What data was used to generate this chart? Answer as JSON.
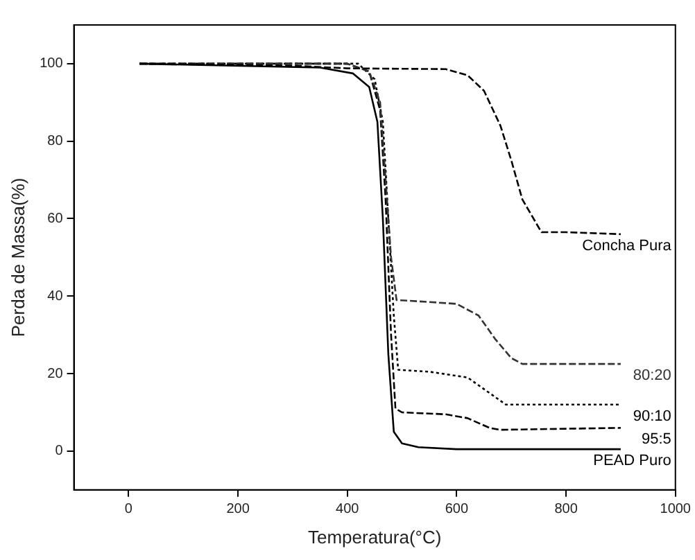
{
  "chart_data": {
    "type": "line",
    "xlabel": "Temperatura(°C)",
    "ylabel": "Perda de Massa(%)",
    "xlim": [
      -100,
      1000
    ],
    "xticks": [
      0,
      200,
      400,
      600,
      800,
      1000
    ],
    "ylim": [
      -10,
      110
    ],
    "yticks": [
      0,
      20,
      40,
      60,
      80,
      100
    ],
    "grid": false,
    "legend": false,
    "marker": "none",
    "series": [
      {
        "name": "Concha Pura",
        "color": "#000000",
        "line_style": "dashed",
        "x": [
          20,
          300,
          400,
          580,
          620,
          650,
          680,
          700,
          720,
          755,
          800,
          900
        ],
        "values": [
          100,
          99.5,
          98.8,
          98.6,
          97,
          93,
          84,
          75,
          65,
          56.5,
          56.5,
          56
        ]
      },
      {
        "name": "80:20",
        "color": "#333333",
        "line_style": "dashed",
        "x": [
          20,
          400,
          440,
          460,
          470,
          480,
          490,
          550,
          600,
          640,
          670,
          700,
          720,
          900
        ],
        "values": [
          100,
          100,
          98,
          90,
          70,
          50,
          39,
          38.5,
          38,
          35,
          29,
          24,
          22.5,
          22.5
        ]
      },
      {
        "name": "90:10",
        "color": "#000000",
        "line_style": "dotted",
        "x": [
          20,
          420,
          450,
          465,
          475,
          485,
          493,
          550,
          620,
          660,
          690,
          900
        ],
        "values": [
          100,
          100,
          96,
          85,
          60,
          35,
          21,
          20.5,
          19,
          15,
          12,
          12
        ]
      },
      {
        "name": "95:5",
        "color": "#000000",
        "line_style": "dashed",
        "x": [
          20,
          400,
          440,
          460,
          470,
          480,
          488,
          500,
          580,
          620,
          660,
          680,
          900
        ],
        "values": [
          100,
          100,
          98,
          88,
          65,
          30,
          11,
          10,
          9.5,
          8.5,
          6,
          5.5,
          6
        ]
      },
      {
        "name": "PEAD Puro",
        "color": "#000000",
        "line_style": "solid",
        "x": [
          20,
          350,
          410,
          440,
          455,
          465,
          475,
          485,
          500,
          530,
          600,
          900
        ],
        "values": [
          100,
          99,
          97.5,
          94,
          85,
          60,
          25,
          5,
          2,
          1,
          0.5,
          0.5
        ]
      }
    ]
  }
}
